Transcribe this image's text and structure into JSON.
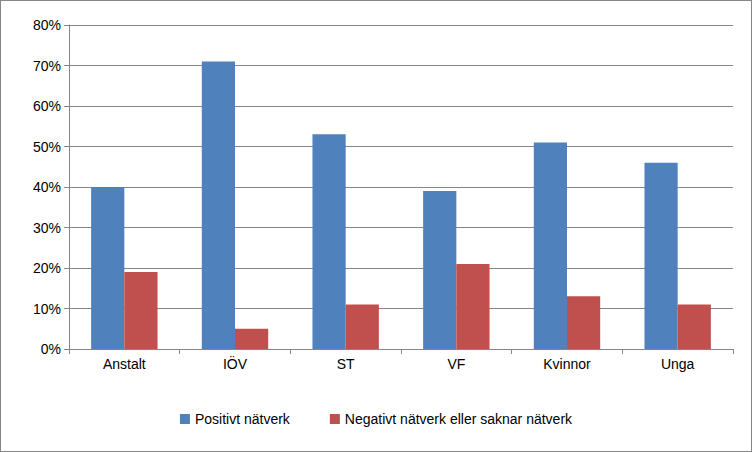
{
  "chart_data": {
    "type": "bar",
    "categories": [
      "Anstalt",
      "IÖV",
      "ST",
      "VF",
      "Kvinnor",
      "Unga"
    ],
    "series": [
      {
        "name": "Positivt nätverk",
        "color": "#4f81bd",
        "values": [
          40,
          71,
          53,
          39,
          51,
          46
        ]
      },
      {
        "name": "Negativt nätverk eller saknar nätverk",
        "color": "#c0504d",
        "values": [
          19,
          5,
          11,
          21,
          13,
          11
        ]
      }
    ],
    "ylim": [
      0,
      80
    ],
    "yticks": [
      {
        "value": 0,
        "label": "0%"
      },
      {
        "value": 10,
        "label": "10%"
      },
      {
        "value": 20,
        "label": "20%"
      },
      {
        "value": 30,
        "label": "30%"
      },
      {
        "value": 40,
        "label": "40%"
      },
      {
        "value": 50,
        "label": "50%"
      },
      {
        "value": 60,
        "label": "60%"
      },
      {
        "value": 70,
        "label": "70%"
      },
      {
        "value": 80,
        "label": "80%"
      }
    ],
    "grid": true,
    "legend": "bottom"
  }
}
